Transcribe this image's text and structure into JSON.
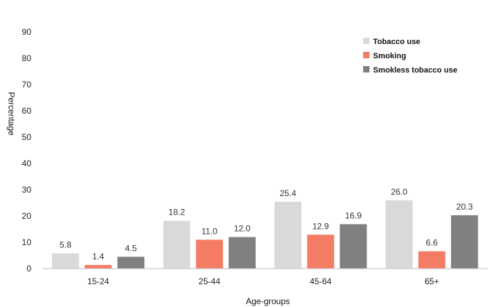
{
  "chart_data": {
    "type": "bar",
    "title": "",
    "xlabel": "Age-groups",
    "ylabel": "Percentage",
    "categories": [
      "15-24",
      "25-44",
      "45-64",
      "65+"
    ],
    "series": [
      {
        "name": "Tobacco use",
        "values": [
          5.8,
          18.2,
          25.4,
          26.0
        ],
        "color": "#d9d9d9"
      },
      {
        "name": "Smoking",
        "values": [
          1.4,
          11.0,
          12.9,
          6.6
        ],
        "color": "#f47c65"
      },
      {
        "name": "Smokless tobacco use",
        "values": [
          4.5,
          12.0,
          16.9,
          20.3
        ],
        "color": "#808080"
      }
    ],
    "data_labels": [
      [
        "5.8",
        "18.2",
        "25.4",
        "26.0"
      ],
      [
        "1.4",
        "11.0",
        "12.9",
        "6.6"
      ],
      [
        "4.5",
        "12.0",
        "16.9",
        "20.3"
      ]
    ],
    "ylim": [
      0,
      90
    ],
    "yticks": [
      "0",
      "10",
      "20",
      "30",
      "40",
      "50",
      "60",
      "70",
      "80",
      "90"
    ],
    "grid": false,
    "legend_position": "top-right"
  }
}
